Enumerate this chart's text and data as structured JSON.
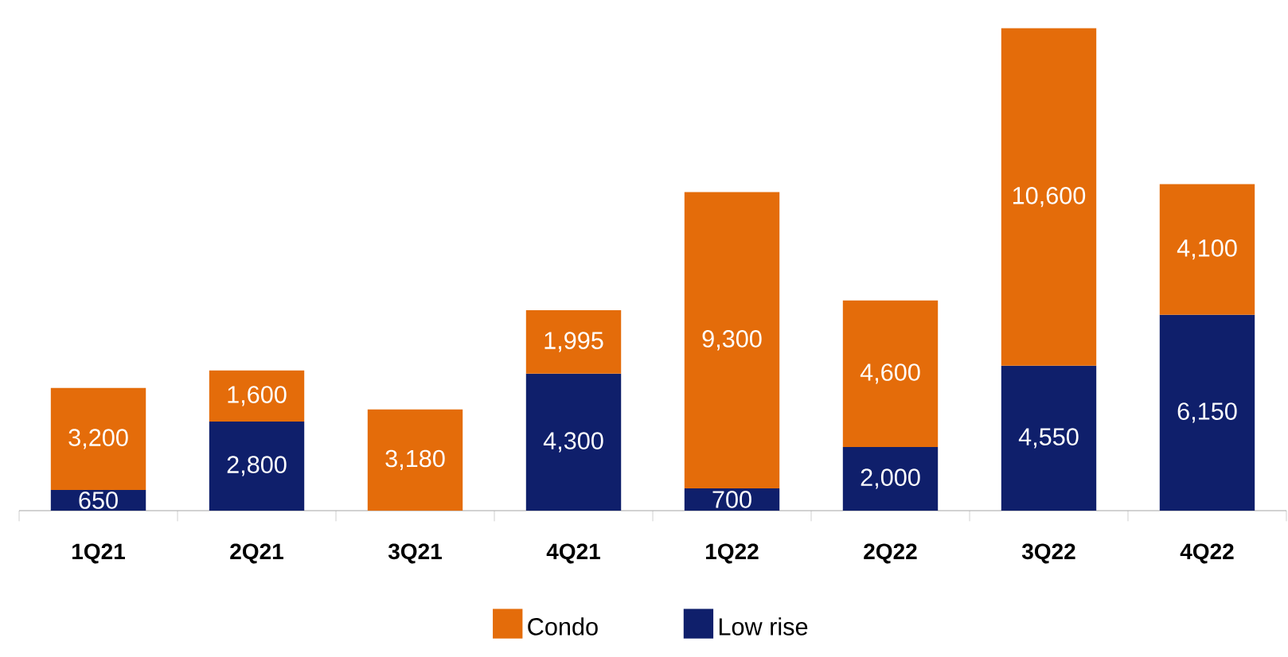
{
  "chart_data": {
    "type": "bar",
    "stacked": true,
    "legend": "bottom",
    "categories": [
      "1Q21",
      "2Q21",
      "3Q21",
      "4Q21",
      "1Q22",
      "2Q22",
      "3Q22",
      "4Q22"
    ],
    "series": [
      {
        "name": "Low rise",
        "color": "#0f1f6b",
        "values": [
          650,
          2800,
          null,
          4300,
          700,
          2000,
          4550,
          6150
        ],
        "value_labels": [
          "650",
          "2,800",
          null,
          "4,300",
          "700",
          "2,000",
          "4,550",
          "6,150"
        ]
      },
      {
        "name": "Condo",
        "color": "#e46c0a",
        "values": [
          3200,
          1600,
          3180,
          1995,
          9300,
          4600,
          10600,
          4100
        ],
        "value_labels": [
          "3,200",
          "1,600",
          "3,180",
          "1,995",
          "9,300",
          "4,600",
          "10,600",
          "4,100"
        ]
      }
    ]
  }
}
